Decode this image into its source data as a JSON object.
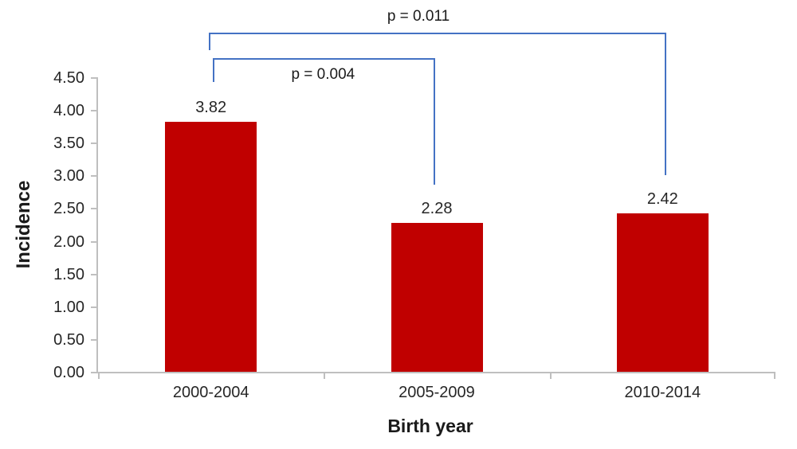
{
  "chart_data": {
    "type": "bar",
    "title": "",
    "categories": [
      "2000-2004",
      "2005-2009",
      "2010-2014"
    ],
    "values": [
      3.82,
      2.28,
      2.42
    ],
    "value_labels": [
      "3.82",
      "2.28",
      "2.42"
    ],
    "xlabel": "Birth year",
    "ylabel": "Incidence",
    "ylim": [
      0,
      4.5
    ],
    "ytick_step": 0.5,
    "yticks": [
      "0.00",
      "0.50",
      "1.00",
      "1.50",
      "2.00",
      "2.50",
      "3.00",
      "3.50",
      "4.00",
      "4.50"
    ],
    "grid": false,
    "legend": false,
    "colors": {
      "bar": "#c00000",
      "bracket": "#4472c4",
      "axis": "#bfbfbf",
      "text": "#262626"
    },
    "significance_brackets": [
      {
        "from": "2000-2004",
        "to": "2005-2009",
        "label": "p = 0.004",
        "label_position": "below"
      },
      {
        "from": "2000-2004",
        "to": "2010-2014",
        "label": "p = 0.011",
        "label_position": "above"
      }
    ]
  }
}
